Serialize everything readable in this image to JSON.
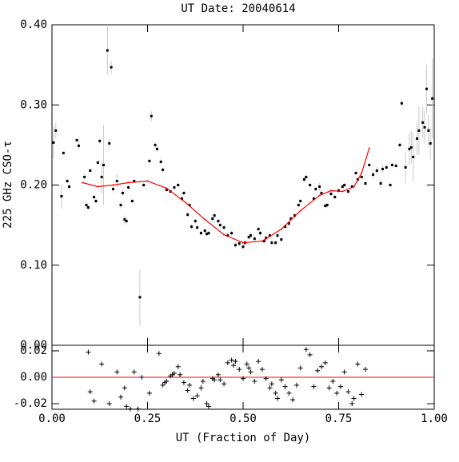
{
  "chart_data": [
    {
      "type": "errorbar",
      "title": "UT Date: 20040614",
      "ylabel": "225 GHz CSO-τ",
      "x": [
        0.004,
        0.01,
        0.025,
        0.03,
        0.04,
        0.045,
        0.065,
        0.07,
        0.085,
        0.09,
        0.095,
        0.1,
        0.11,
        0.115,
        0.12,
        0.125,
        0.13,
        0.135,
        0.145,
        0.15,
        0.155,
        0.16,
        0.17,
        0.18,
        0.185,
        0.19,
        0.195,
        0.2,
        0.21,
        0.215,
        0.23,
        0.24,
        0.255,
        0.26,
        0.27,
        0.275,
        0.285,
        0.29,
        0.3,
        0.31,
        0.32,
        0.33,
        0.34,
        0.345,
        0.355,
        0.36,
        0.365,
        0.375,
        0.38,
        0.39,
        0.4,
        0.405,
        0.41,
        0.42,
        0.425,
        0.435,
        0.44,
        0.45,
        0.46,
        0.47,
        0.48,
        0.49,
        0.5,
        0.505,
        0.515,
        0.52,
        0.53,
        0.54,
        0.545,
        0.555,
        0.56,
        0.57,
        0.575,
        0.585,
        0.59,
        0.6,
        0.61,
        0.62,
        0.625,
        0.635,
        0.645,
        0.65,
        0.66,
        0.665,
        0.675,
        0.685,
        0.69,
        0.7,
        0.705,
        0.715,
        0.72,
        0.73,
        0.74,
        0.75,
        0.76,
        0.765,
        0.775,
        0.785,
        0.795,
        0.8,
        0.81,
        0.82,
        0.83,
        0.84,
        0.85,
        0.86,
        0.865,
        0.875,
        0.885,
        0.89,
        0.9,
        0.91,
        0.915,
        0.925,
        0.935,
        0.94,
        0.945,
        0.955,
        0.96,
        0.97,
        0.975,
        0.98,
        0.985,
        0.99,
        0.995
      ],
      "values": [
        0.253,
        0.268,
        0.186,
        0.24,
        0.205,
        0.198,
        0.256,
        0.249,
        0.21,
        0.175,
        0.172,
        0.218,
        0.185,
        0.18,
        0.228,
        0.255,
        0.21,
        0.225,
        0.368,
        0.252,
        0.347,
        0.195,
        0.205,
        0.175,
        0.19,
        0.157,
        0.155,
        0.197,
        0.18,
        0.205,
        0.06,
        0.2,
        0.23,
        0.286,
        0.25,
        0.245,
        0.229,
        0.219,
        0.194,
        0.192,
        0.197,
        0.2,
        0.183,
        0.19,
        0.163,
        0.175,
        0.148,
        0.155,
        0.147,
        0.14,
        0.143,
        0.139,
        0.14,
        0.158,
        0.162,
        0.155,
        0.15,
        0.147,
        0.137,
        0.14,
        0.125,
        0.127,
        0.123,
        0.128,
        0.135,
        0.137,
        0.133,
        0.145,
        0.14,
        0.13,
        0.134,
        0.137,
        0.128,
        0.128,
        0.137,
        0.132,
        0.148,
        0.152,
        0.158,
        0.162,
        0.175,
        0.18,
        0.207,
        0.21,
        0.2,
        0.183,
        0.195,
        0.198,
        0.19,
        0.174,
        0.175,
        0.189,
        0.185,
        0.193,
        0.198,
        0.2,
        0.192,
        0.198,
        0.215,
        0.207,
        0.21,
        0.202,
        0.225,
        0.213,
        0.218,
        0.202,
        0.22,
        0.222,
        0.2,
        0.225,
        0.224,
        0.25,
        0.302,
        0.222,
        0.245,
        0.247,
        0.235,
        0.258,
        0.268,
        0.278,
        0.272,
        0.32,
        0.268,
        0.252,
        0.308
      ],
      "errors": [
        0.02,
        0.01,
        0.015,
        0.002,
        0.003,
        0.003,
        0.002,
        0.005,
        0.003,
        0.004,
        0.003,
        0.003,
        0.003,
        0.003,
        0.003,
        0.003,
        0.02,
        0.05,
        0.03,
        0.005,
        0.008,
        0.004,
        0.008,
        0.004,
        0.004,
        0.005,
        0.005,
        0.003,
        0.003,
        0.003,
        0.035,
        0.003,
        0.003,
        0.006,
        0.004,
        0.003,
        0.003,
        0.003,
        0.003,
        0.003,
        0.003,
        0.003,
        0.003,
        0.003,
        0.003,
        0.003,
        0.003,
        0.003,
        0.003,
        0.003,
        0.003,
        0.003,
        0.003,
        0.003,
        0.003,
        0.003,
        0.003,
        0.003,
        0.003,
        0.003,
        0.003,
        0.003,
        0.003,
        0.003,
        0.003,
        0.003,
        0.003,
        0.003,
        0.003,
        0.003,
        0.003,
        0.003,
        0.003,
        0.003,
        0.003,
        0.003,
        0.003,
        0.003,
        0.003,
        0.003,
        0.003,
        0.003,
        0.003,
        0.003,
        0.003,
        0.003,
        0.003,
        0.005,
        0.003,
        0.003,
        0.003,
        0.003,
        0.003,
        0.003,
        0.003,
        0.003,
        0.003,
        0.003,
        0.003,
        0.003,
        0.003,
        0.003,
        0.003,
        0.005,
        0.005,
        0.005,
        0.005,
        0.003,
        0.003,
        0.003,
        0.003,
        0.003,
        0.005,
        0.02,
        0.02,
        0.02,
        0.03,
        0.02,
        0.03,
        0.02,
        0.02,
        0.03,
        0.02,
        0.02,
        0.05
      ],
      "color": "#000000",
      "error_color": "#c8c8c8",
      "fit": {
        "x": [
          0.08,
          0.12,
          0.16,
          0.2,
          0.25,
          0.3,
          0.35,
          0.4,
          0.45,
          0.5,
          0.55,
          0.6,
          0.65,
          0.7,
          0.73,
          0.76,
          0.79,
          0.81,
          0.83
        ],
        "values": [
          0.203,
          0.198,
          0.2,
          0.203,
          0.205,
          0.196,
          0.178,
          0.157,
          0.138,
          0.128,
          0.13,
          0.145,
          0.168,
          0.187,
          0.193,
          0.192,
          0.198,
          0.215,
          0.246
        ],
        "color": "#ff0000"
      },
      "xlim": [
        0,
        1
      ],
      "ylim": [
        0,
        0.4
      ],
      "xticks": [
        0,
        0.25,
        0.5,
        0.75,
        1
      ],
      "yticks": [
        {
          "value": 0,
          "label": "0.00"
        },
        {
          "value": 0.1,
          "label": "0.10"
        },
        {
          "value": 0.2,
          "label": "0.20"
        },
        {
          "value": 0.3,
          "label": "0.30"
        },
        {
          "value": 0.4,
          "label": "0.40"
        }
      ]
    },
    {
      "type": "residual",
      "xlabel": "UT (Fraction of Day)",
      "x": [
        0.095,
        0.1,
        0.11,
        0.13,
        0.15,
        0.17,
        0.18,
        0.19,
        0.195,
        0.205,
        0.215,
        0.225,
        0.235,
        0.255,
        0.28,
        0.29,
        0.295,
        0.3,
        0.31,
        0.315,
        0.32,
        0.33,
        0.335,
        0.345,
        0.355,
        0.36,
        0.37,
        0.38,
        0.39,
        0.395,
        0.405,
        0.41,
        0.42,
        0.425,
        0.435,
        0.44,
        0.45,
        0.46,
        0.47,
        0.475,
        0.48,
        0.49,
        0.5,
        0.51,
        0.515,
        0.52,
        0.53,
        0.54,
        0.55,
        0.56,
        0.57,
        0.575,
        0.585,
        0.59,
        0.6,
        0.61,
        0.62,
        0.63,
        0.64,
        0.65,
        0.665,
        0.675,
        0.685,
        0.695,
        0.705,
        0.715,
        0.725,
        0.735,
        0.745,
        0.755,
        0.765,
        0.775,
        0.785,
        0.79,
        0.8,
        0.81,
        0.82
      ],
      "values": [
        0.019,
        -0.011,
        -0.018,
        0.01,
        -0.02,
        0.004,
        -0.015,
        -0.008,
        -0.022,
        -0.024,
        0.004,
        -0.024,
        0.0,
        -0.012,
        0.018,
        -0.006,
        -0.004,
        -0.003,
        0.001,
        0.002,
        0.003,
        0.008,
        0.002,
        -0.004,
        -0.01,
        -0.006,
        -0.016,
        -0.014,
        -0.008,
        -0.003,
        -0.02,
        -0.022,
        -0.001,
        -0.002,
        0.002,
        -0.002,
        -0.005,
        0.011,
        0.013,
        0.009,
        0.012,
        0.006,
        -0.001,
        0.01,
        0.007,
        0.004,
        -0.003,
        0.012,
        0.006,
        -0.001,
        -0.008,
        -0.005,
        -0.012,
        -0.016,
        -0.002,
        -0.007,
        -0.012,
        -0.017,
        -0.006,
        0.007,
        0.021,
        0.017,
        -0.007,
        0.005,
        0.008,
        0.011,
        -0.008,
        -0.003,
        -0.012,
        -0.007,
        0.004,
        -0.011,
        -0.02,
        -0.016,
        0.01,
        -0.013,
        0.006
      ],
      "color": "#000000",
      "reference_line": 0,
      "reference_color": "#ff0000",
      "xlim": [
        0,
        1
      ],
      "ylim": [
        -0.0242,
        0.0242
      ],
      "xticks": [
        {
          "value": 0,
          "label": "0.00"
        },
        {
          "value": 0.25,
          "label": "0.25"
        },
        {
          "value": 0.5,
          "label": "0.50"
        },
        {
          "value": 0.75,
          "label": "0.75"
        },
        {
          "value": 1,
          "label": "1.00"
        }
      ],
      "yticks": [
        -0.02,
        {
          "value": 0,
          "label": "0.00"
        },
        0.02
      ]
    }
  ]
}
